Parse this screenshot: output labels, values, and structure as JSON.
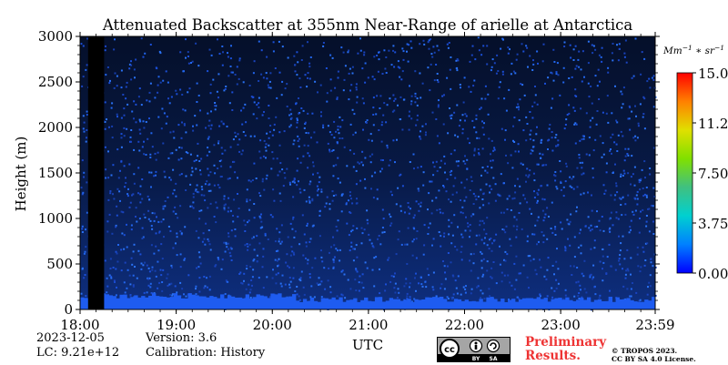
{
  "chart_data": {
    "type": "heatmap",
    "title": "Attenuated Backscatter at 355nm Near-Range of arielle at Antarctica",
    "xlabel": "UTC",
    "ylabel": "Height (m)",
    "x_ticks": [
      "18:00",
      "19:00",
      "20:00",
      "21:00",
      "22:00",
      "23:00",
      "23:59"
    ],
    "xlim": [
      "18:00",
      "23:59"
    ],
    "y_ticks": [
      0,
      500,
      1000,
      1500,
      2000,
      2500,
      3000
    ],
    "ylim": [
      0,
      3000
    ],
    "colorbar": {
      "label": "Mm^-1 * sr^-1",
      "ticks": [
        "0.00",
        "3.75",
        "7.50",
        "11.25",
        "15.00"
      ],
      "range": [
        0,
        15
      ],
      "colors": [
        "#0000ff",
        "#0080ff",
        "#00d0d0",
        "#40c080",
        "#80e000",
        "#e0e000",
        "#ff8000",
        "#ff0000"
      ]
    },
    "no_data_interval": [
      "18:05",
      "18:15"
    ],
    "background_color": "#000000",
    "signal_color": "#1e5cf0"
  },
  "info": {
    "date": "2023-12-05",
    "lc": "LC: 9.21e+12",
    "version": "Version: 3.6",
    "calibration": "Calibration: History"
  },
  "preliminary": [
    "Preliminary",
    "Results."
  ],
  "license": {
    "badge_cc": "cc",
    "badge_by": "BY",
    "badge_sa": "SA",
    "copyright_line1": "© TROPOS 2023.",
    "copyright_line2": "CC BY SA 4.0 License."
  }
}
